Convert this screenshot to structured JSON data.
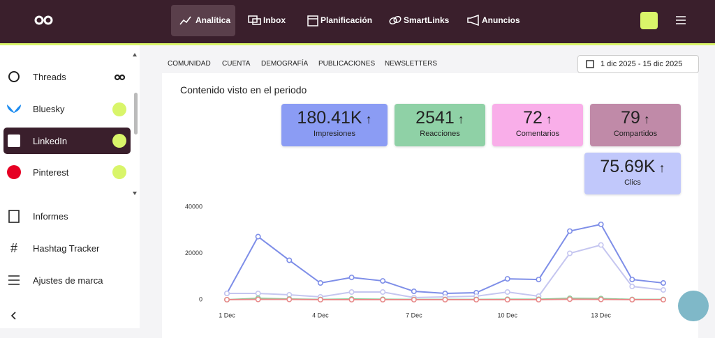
{
  "nav": {
    "items": [
      "Analítica",
      "Inbox",
      "Planificación",
      "SmartLinks",
      "Anuncios"
    ]
  },
  "sidebar": {
    "networks": [
      "Threads",
      "Bluesky",
      "LinkedIn",
      "Pinterest"
    ],
    "tools": [
      "Informes",
      "Hashtag Tracker",
      "Ajustes de marca"
    ]
  },
  "tabs": [
    "COMUNIDAD",
    "CUENTA",
    "DEMOGRAFÍA",
    "PUBLICACIONES",
    "NEWSLETTERS"
  ],
  "date_range": "1 dic 2025 - 15 dic 2025",
  "card_title": "Contenido visto en el periodo",
  "kpis": [
    {
      "value": "180.41K",
      "label": "Impresiones",
      "color": "#8b9cf4"
    },
    {
      "value": "2541",
      "label": "Reacciones",
      "color": "#8fd1a6"
    },
    {
      "value": "72",
      "label": "Comentarios",
      "color": "#f9aee9"
    },
    {
      "value": "79",
      "label": "Compartidos",
      "color": "#c08aa8"
    },
    {
      "value": "75.69K",
      "label": "Clics",
      "color": "#c1c8fb"
    }
  ],
  "chart_data": {
    "type": "line",
    "categories": [
      "1 Dec",
      null,
      null,
      "4 Dec",
      null,
      null,
      "7 Dec",
      null,
      null,
      "10 Dec",
      null,
      null,
      "13 Dec",
      null,
      null
    ],
    "series": [
      {
        "color": "#7e8ee8",
        "values": [
          2700,
          27200,
          17000,
          7200,
          9600,
          8100,
          3600,
          2700,
          3000,
          9000,
          8700,
          29600,
          32500,
          8700,
          7200
        ]
      },
      {
        "color": "#c5c6f0",
        "values": [
          2700,
          2700,
          2100,
          1200,
          3300,
          3300,
          900,
          1200,
          1500,
          3300,
          1500,
          20000,
          23600,
          5700,
          4200
        ]
      },
      {
        "color": "#8fd19e",
        "values": [
          0,
          600,
          300,
          100,
          300,
          200,
          100,
          100,
          100,
          200,
          200,
          600,
          500,
          100,
          100
        ]
      },
      {
        "color": "#e88a8a",
        "values": [
          0,
          100,
          100,
          0,
          0,
          0,
          0,
          0,
          0,
          0,
          0,
          200,
          100,
          0,
          0
        ]
      }
    ],
    "ylim": [
      0,
      40000
    ],
    "yticks": [
      0,
      20000,
      40000
    ],
    "grid": false
  }
}
